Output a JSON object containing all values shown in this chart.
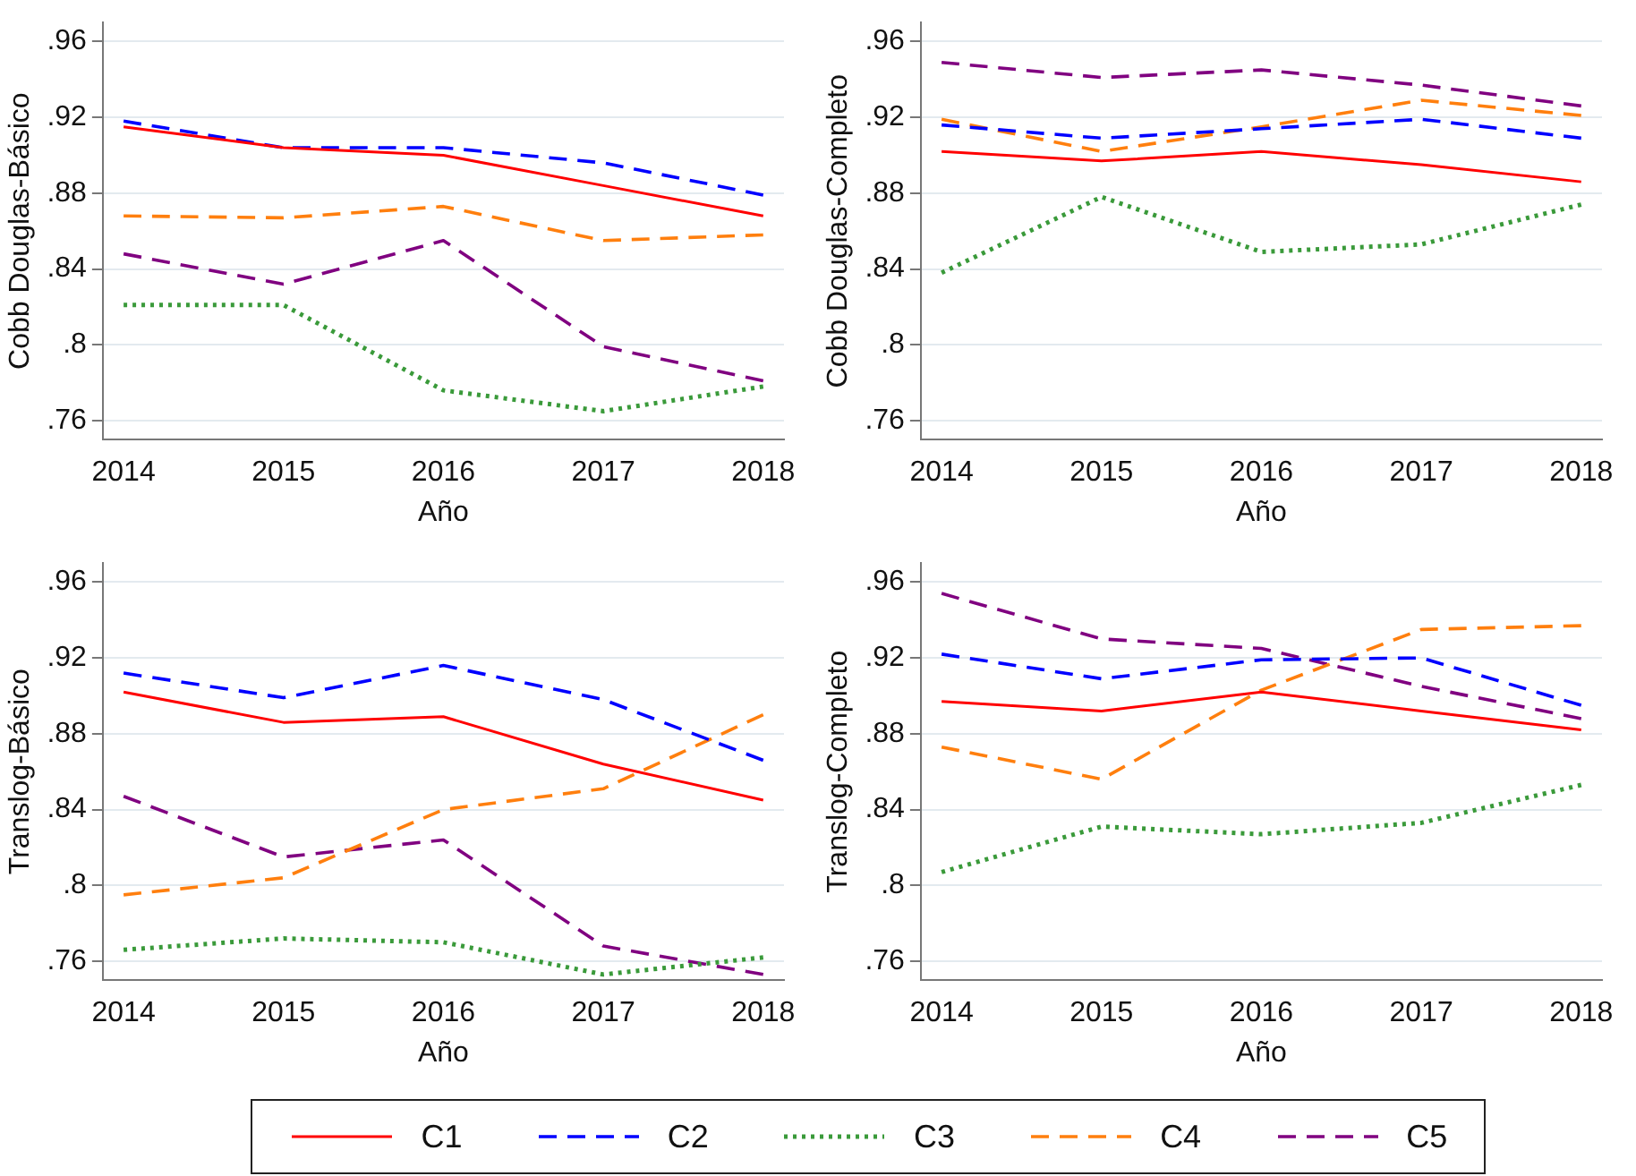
{
  "chart_data": [
    {
      "type": "line",
      "ylabel": "Cobb Douglas-Básico",
      "xlabel": "Año",
      "x": [
        2014,
        2015,
        2016,
        2017,
        2018
      ],
      "xlim": [
        2013.87,
        2018.13
      ],
      "xticks": [
        2014,
        2015,
        2016,
        2017,
        2018
      ],
      "ylim": [
        0.75,
        0.97
      ],
      "yticks": [
        {
          "value": 0.76,
          "label": ".76"
        },
        {
          "value": 0.8,
          "label": ".8"
        },
        {
          "value": 0.84,
          "label": ".84"
        },
        {
          "value": 0.88,
          "label": ".88"
        },
        {
          "value": 0.92,
          "label": ".92"
        },
        {
          "value": 0.96,
          "label": ".96"
        }
      ],
      "grid": "y",
      "legend": "bottom",
      "marker": "none",
      "series": [
        {
          "name": "C1",
          "color": "#ff0000",
          "line_style": "solid",
          "values": [
            0.915,
            0.904,
            0.9,
            0.884,
            0.868
          ]
        },
        {
          "name": "C2",
          "color": "#0000ff",
          "line_style": "dashed",
          "values": [
            0.918,
            0.904,
            0.904,
            0.896,
            0.879
          ]
        },
        {
          "name": "C3",
          "color": "#3a9a3a",
          "line_style": "dotted",
          "values": [
            0.821,
            0.821,
            0.776,
            0.765,
            0.778
          ]
        },
        {
          "name": "C4",
          "color": "#ff7f0e",
          "line_style": "dashed",
          "values": [
            0.868,
            0.867,
            0.873,
            0.855,
            0.858
          ]
        },
        {
          "name": "C5",
          "color": "#800080",
          "line_style": "dashed",
          "values": [
            0.848,
            0.832,
            0.855,
            0.799,
            0.781
          ]
        }
      ]
    },
    {
      "type": "line",
      "ylabel": "Cobb Douglas-Completo",
      "xlabel": "Año",
      "x": [
        2014,
        2015,
        2016,
        2017,
        2018
      ],
      "xlim": [
        2013.87,
        2018.13
      ],
      "xticks": [
        2014,
        2015,
        2016,
        2017,
        2018
      ],
      "ylim": [
        0.75,
        0.97
      ],
      "yticks": [
        {
          "value": 0.76,
          "label": ".76"
        },
        {
          "value": 0.8,
          "label": ".8"
        },
        {
          "value": 0.84,
          "label": ".84"
        },
        {
          "value": 0.88,
          "label": ".88"
        },
        {
          "value": 0.92,
          "label": ".92"
        },
        {
          "value": 0.96,
          "label": ".96"
        }
      ],
      "grid": "y",
      "marker": "none",
      "series": [
        {
          "color": "#ff0000",
          "line_style": "solid",
          "values": [
            0.902,
            0.897,
            0.902,
            0.895,
            0.886
          ]
        },
        {
          "color": "#0000ff",
          "line_style": "dashed",
          "values": [
            0.916,
            0.909,
            0.914,
            0.919,
            0.909
          ]
        },
        {
          "color": "#3a9a3a",
          "line_style": "dotted",
          "values": [
            0.838,
            0.878,
            0.849,
            0.853,
            0.874
          ]
        },
        {
          "color": "#ff7f0e",
          "line_style": "dashed",
          "values": [
            0.919,
            0.902,
            0.915,
            0.929,
            0.921
          ]
        },
        {
          "color": "#800080",
          "line_style": "dashed",
          "values": [
            0.949,
            0.941,
            0.945,
            0.937,
            0.926
          ]
        }
      ]
    },
    {
      "type": "line",
      "ylabel": "Translog-Básico",
      "xlabel": "Año",
      "x": [
        2014,
        2015,
        2016,
        2017,
        2018
      ],
      "xlim": [
        2013.87,
        2018.13
      ],
      "xticks": [
        2014,
        2015,
        2016,
        2017,
        2018
      ],
      "ylim": [
        0.75,
        0.97
      ],
      "yticks": [
        {
          "value": 0.76,
          "label": ".76"
        },
        {
          "value": 0.8,
          "label": ".8"
        },
        {
          "value": 0.84,
          "label": ".84"
        },
        {
          "value": 0.88,
          "label": ".88"
        },
        {
          "value": 0.92,
          "label": ".92"
        },
        {
          "value": 0.96,
          "label": ".96"
        }
      ],
      "grid": "y",
      "marker": "none",
      "series": [
        {
          "color": "#ff0000",
          "line_style": "solid",
          "values": [
            0.902,
            0.886,
            0.889,
            0.864,
            0.845
          ]
        },
        {
          "color": "#0000ff",
          "line_style": "dashed",
          "values": [
            0.912,
            0.899,
            0.916,
            0.898,
            0.866
          ]
        },
        {
          "color": "#3a9a3a",
          "line_style": "dotted",
          "values": [
            0.766,
            0.772,
            0.77,
            0.753,
            0.762
          ]
        },
        {
          "color": "#ff7f0e",
          "line_style": "dashed",
          "values": [
            0.795,
            0.804,
            0.84,
            0.851,
            0.89
          ]
        },
        {
          "color": "#800080",
          "line_style": "dashed",
          "values": [
            0.847,
            0.815,
            0.824,
            0.768,
            0.753
          ]
        }
      ]
    },
    {
      "type": "line",
      "ylabel": "Translog-Completo",
      "xlabel": "Año",
      "x": [
        2014,
        2015,
        2016,
        2017,
        2018
      ],
      "xlim": [
        2013.87,
        2018.13
      ],
      "xticks": [
        2014,
        2015,
        2016,
        2017,
        2018
      ],
      "ylim": [
        0.75,
        0.97
      ],
      "yticks": [
        {
          "value": 0.76,
          "label": ".76"
        },
        {
          "value": 0.8,
          "label": ".8"
        },
        {
          "value": 0.84,
          "label": ".84"
        },
        {
          "value": 0.88,
          "label": ".88"
        },
        {
          "value": 0.92,
          "label": ".92"
        },
        {
          "value": 0.96,
          "label": ".96"
        }
      ],
      "grid": "y",
      "marker": "none",
      "series": [
        {
          "color": "#ff0000",
          "line_style": "solid",
          "values": [
            0.897,
            0.892,
            0.902,
            0.892,
            0.882
          ]
        },
        {
          "color": "#0000ff",
          "line_style": "dashed",
          "values": [
            0.922,
            0.909,
            0.919,
            0.92,
            0.895
          ]
        },
        {
          "color": "#3a9a3a",
          "line_style": "dotted",
          "values": [
            0.807,
            0.831,
            0.827,
            0.833,
            0.853
          ]
        },
        {
          "color": "#ff7f0e",
          "line_style": "dashed",
          "values": [
            0.873,
            0.856,
            0.903,
            0.935,
            0.937
          ]
        },
        {
          "color": "#800080",
          "line_style": "dashed",
          "values": [
            0.954,
            0.93,
            0.925,
            0.905,
            0.888
          ]
        }
      ]
    }
  ]
}
